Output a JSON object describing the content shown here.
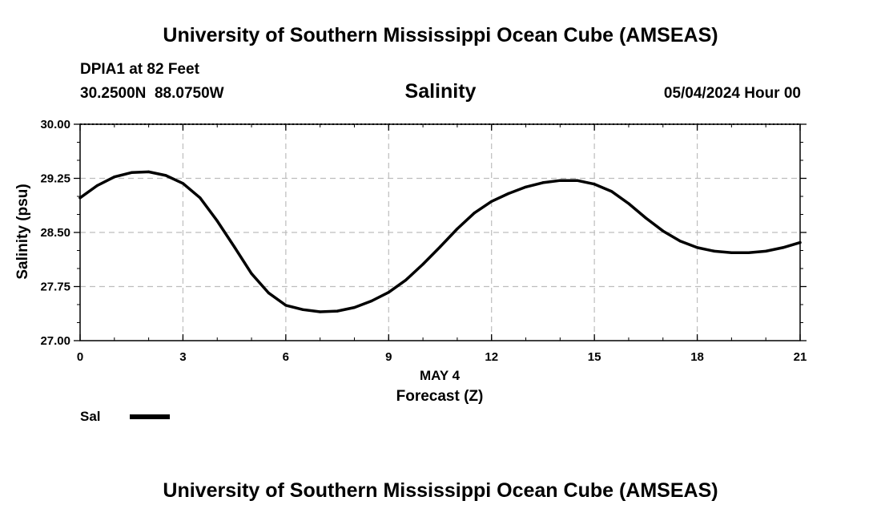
{
  "header": {
    "title": "University of Southern Mississippi Ocean Cube (AMSEAS)",
    "station": "DPIA1 at 82 Feet",
    "coordinates": "30.2500N  88.0750W",
    "subtitle": "Salinity",
    "datetime": "05/04/2024 Hour 00"
  },
  "footer": {
    "title": "University of Southern Mississippi Ocean Cube (AMSEAS)"
  },
  "chart_data": {
    "type": "line",
    "title": "Salinity",
    "xlabel": "Forecast (Z)",
    "xlabel_date": "MAY 4",
    "ylabel": "Salinity (psu)",
    "xlim": [
      0,
      21
    ],
    "ylim": [
      27.0,
      30.0
    ],
    "xticks": [
      "0",
      "3",
      "6",
      "9",
      "12",
      "15",
      "18",
      "21"
    ],
    "yticks": [
      "27.00",
      "27.75",
      "28.50",
      "29.25",
      "30.00"
    ],
    "grid": true,
    "legend": "bottom-left",
    "series": [
      {
        "name": "Sal",
        "color": "#000000",
        "x": [
          0,
          0.5,
          1,
          1.5,
          2,
          2.5,
          3,
          3.5,
          4,
          4.5,
          5,
          5.5,
          6,
          6.5,
          7,
          7.5,
          8,
          8.5,
          9,
          9.5,
          10,
          10.5,
          11,
          11.5,
          12,
          12.5,
          13,
          13.5,
          14,
          14.5,
          15,
          15.5,
          16,
          16.5,
          17,
          17.5,
          18,
          18.5,
          19,
          19.5,
          20,
          20.5,
          21
        ],
        "values": [
          28.98,
          29.15,
          29.27,
          29.33,
          29.34,
          29.29,
          29.18,
          28.98,
          28.66,
          28.3,
          27.93,
          27.66,
          27.49,
          27.43,
          27.4,
          27.41,
          27.46,
          27.55,
          27.67,
          27.84,
          28.06,
          28.3,
          28.55,
          28.77,
          28.93,
          29.04,
          29.13,
          29.19,
          29.22,
          29.22,
          29.17,
          29.07,
          28.9,
          28.7,
          28.52,
          28.38,
          28.29,
          28.24,
          28.22,
          28.22,
          28.24,
          28.29,
          28.36
        ]
      }
    ]
  }
}
